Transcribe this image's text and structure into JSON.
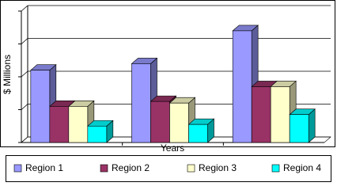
{
  "chart_data": {
    "type": "bar3d",
    "x_label": "Years",
    "y_label": "$ Millions",
    "categories": [
      null,
      null,
      null
    ],
    "series": [
      {
        "name": "Region 1",
        "color": "#9999ff",
        "values": [
          2.2,
          2.4,
          3.4
        ]
      },
      {
        "name": "Region 2",
        "color": "#993366",
        "values": [
          1.1,
          1.25,
          1.7
        ]
      },
      {
        "name": "Region 3",
        "color": "#ffffcc",
        "values": [
          1.1,
          1.2,
          1.7
        ]
      },
      {
        "name": "Region 4",
        "color": "#00ffff",
        "values": [
          0.5,
          0.55,
          0.85
        ]
      }
    ],
    "ylim": [
      0,
      4
    ],
    "yticks": [
      0,
      1,
      2,
      3,
      4
    ],
    "grid": true,
    "legend": "bottom"
  }
}
